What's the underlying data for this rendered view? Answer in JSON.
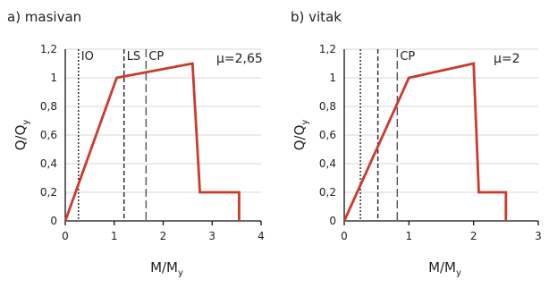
{
  "chart_data": [
    {
      "type": "line",
      "title": "a) masivan",
      "xlabel": "M/M",
      "xlabel_sub": "y",
      "ylabel": "Q/Q",
      "ylabel_sub": "y",
      "xlim": [
        0,
        4
      ],
      "ylim": [
        0,
        1.2
      ],
      "x_ticks": [
        0,
        1,
        2,
        3,
        4
      ],
      "y_ticks": [
        0,
        0.2,
        0.4,
        0.6,
        0.8,
        1,
        1.2
      ],
      "x_tick_labels": [
        "0",
        "1",
        "2",
        "3",
        "4"
      ],
      "y_tick_labels": [
        "0",
        "0,2",
        "0,4",
        "0,6",
        "0,8",
        "1",
        "1,2"
      ],
      "grid": "horizontal",
      "annotation": "μ=2,65",
      "series": [
        {
          "x": [
            0,
            1.05,
            2.6,
            2.75,
            2.75,
            3.55,
            3.55
          ],
          "y": [
            0,
            1.0,
            1.1,
            0.2,
            0.2,
            0.2,
            0
          ]
        }
      ],
      "performance_levels": [
        {
          "label": "IO",
          "x": 0.27,
          "style": "dotted"
        },
        {
          "label": "LS",
          "x": 1.2,
          "style": "dashed"
        },
        {
          "label": "CP",
          "x": 1.65,
          "style": "long-dashed"
        }
      ]
    },
    {
      "type": "line",
      "title": "b) vitak",
      "xlabel": "M/M",
      "xlabel_sub": "y",
      "ylabel": "Q/Q",
      "ylabel_sub": "y",
      "xlim": [
        0,
        3
      ],
      "ylim": [
        0,
        1.2
      ],
      "x_ticks": [
        0,
        1,
        2,
        3
      ],
      "y_ticks": [
        0,
        0.2,
        0.4,
        0.6,
        0.8,
        1,
        1.2
      ],
      "x_tick_labels": [
        "0",
        "1",
        "2",
        "3"
      ],
      "y_tick_labels": [
        "0",
        "0,2",
        "0,4",
        "0,6",
        "0,8",
        "1",
        "1,2"
      ],
      "grid": "horizontal",
      "annotation": "μ=2",
      "series": [
        {
          "x": [
            0,
            1.0,
            2.0,
            2.08,
            2.08,
            2.5,
            2.5
          ],
          "y": [
            0,
            1.0,
            1.1,
            0.2,
            0.2,
            0.2,
            0
          ]
        }
      ],
      "performance_levels": [
        {
          "label": "",
          "x": 0.25,
          "style": "dotted"
        },
        {
          "label": "",
          "x": 0.52,
          "style": "dashed"
        },
        {
          "label": "CP",
          "x": 0.82,
          "style": "long-dashed"
        }
      ]
    }
  ],
  "style": {
    "curve_color": "#cc3a2a",
    "axis_color": "#111111",
    "grid_color": "#b0b0b0",
    "level_line_color": "#222222"
  }
}
